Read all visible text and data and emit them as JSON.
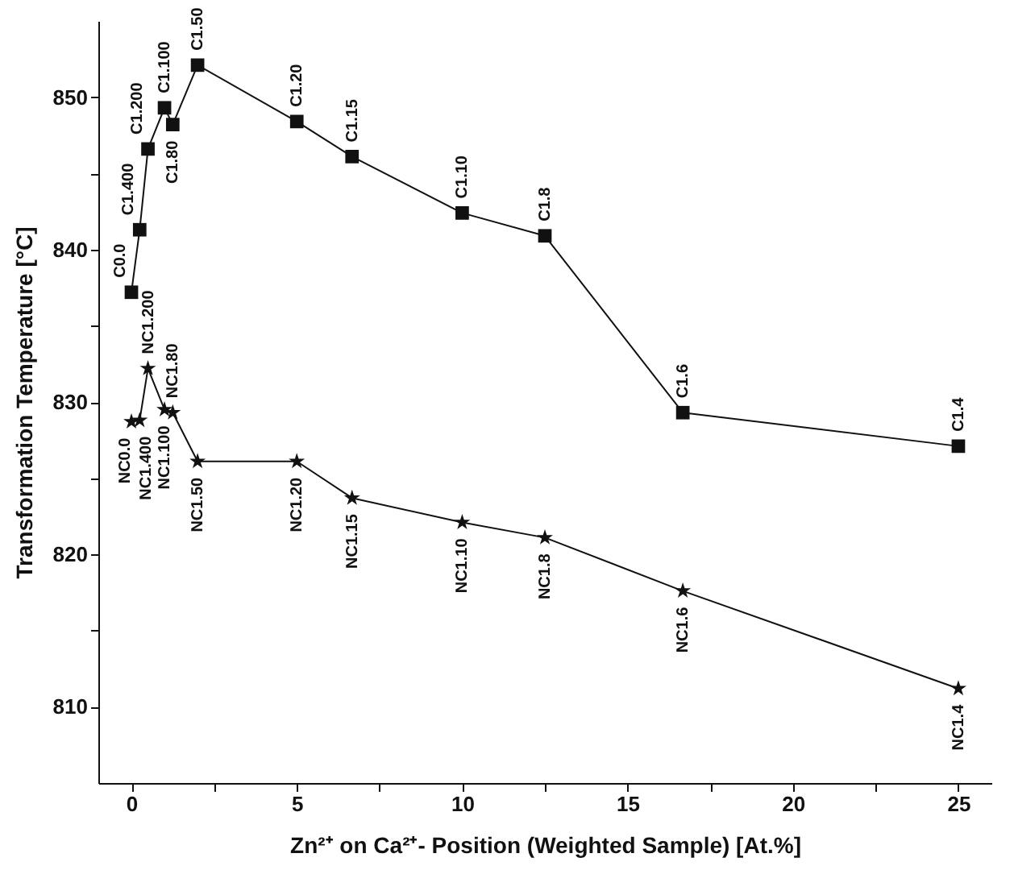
{
  "chart_data": {
    "type": "line",
    "xlabel": "Zn²⁺ on Ca²⁺- Position (Weighted Sample) [At.%]",
    "ylabel": "Transformation Temperature [°C]",
    "xlim": [
      -1,
      26
    ],
    "ylim": [
      805,
      855
    ],
    "xticks": [
      0,
      {
        "value": 2.5,
        "label": null
      },
      5,
      {
        "value": 7.5,
        "label": null
      },
      10,
      {
        "value": 12.5,
        "label": null
      },
      15,
      {
        "value": 17.5,
        "label": null
      },
      20,
      {
        "value": 22.5,
        "label": null
      },
      25
    ],
    "yticks": [
      810,
      {
        "value": 815,
        "label": null
      },
      820,
      {
        "value": 825,
        "label": null
      },
      830,
      {
        "value": 835,
        "label": null
      },
      840,
      {
        "value": 845,
        "label": null
      },
      850
    ],
    "grid": false,
    "line_style": "solid",
    "series": [
      {
        "color": "#111111",
        "marker": "square",
        "x": [
          0,
          0.25,
          0.5,
          1,
          1.25,
          2,
          5,
          6.67,
          10,
          12.5,
          16.67,
          25
        ],
        "values": [
          837.2,
          841.3,
          846.6,
          849.3,
          848.2,
          852.1,
          848.4,
          846.1,
          842.4,
          840.9,
          829.3,
          827.1
        ]
      },
      {
        "color": "#111111",
        "marker": "star",
        "x": [
          0,
          0.25,
          0.5,
          1,
          1.25,
          2,
          5,
          6.67,
          10,
          12.5,
          16.67,
          25
        ],
        "values": [
          828.7,
          828.8,
          832.2,
          829.5,
          829.3,
          826.1,
          826.1,
          823.7,
          822.1,
          821.1,
          817.6,
          811.2
        ]
      }
    ],
    "annotations": [
      {
        "text": "C0.0",
        "x": 0,
        "y": 837.2
      },
      {
        "text": "C1.400",
        "x": 0.25,
        "y": 841.3
      },
      {
        "text": "C1.200",
        "x": 0.5,
        "y": 846.6
      },
      {
        "text": "C1.100",
        "x": 1,
        "y": 849.3
      },
      {
        "text": "C1.80",
        "x": 1.25,
        "y": 848.2
      },
      {
        "text": "C1.50",
        "x": 2,
        "y": 852.1
      },
      {
        "text": "C1.20",
        "x": 5,
        "y": 848.4
      },
      {
        "text": "C1.15",
        "x": 6.67,
        "y": 846.1
      },
      {
        "text": "C1.10",
        "x": 10,
        "y": 842.4
      },
      {
        "text": "C1.8",
        "x": 12.5,
        "y": 840.9
      },
      {
        "text": "C1.6",
        "x": 16.67,
        "y": 829.3
      },
      {
        "text": "C1.4",
        "x": 25,
        "y": 827.1
      },
      {
        "text": "NC0.0",
        "x": 0,
        "y": 828.7
      },
      {
        "text": "NC1.400",
        "x": 0.25,
        "y": 828.8
      },
      {
        "text": "NC1.200",
        "x": 0.5,
        "y": 832.2
      },
      {
        "text": "NC1.100",
        "x": 1,
        "y": 829.5
      },
      {
        "text": "NC1.80",
        "x": 1.25,
        "y": 829.3
      },
      {
        "text": "NC1.50",
        "x": 2,
        "y": 826.1
      },
      {
        "text": "NC1.20",
        "x": 5,
        "y": 826.1
      },
      {
        "text": "NC1.15",
        "x": 6.67,
        "y": 823.7
      },
      {
        "text": "NC1.10",
        "x": 10,
        "y": 822.1
      },
      {
        "text": "NC1.8",
        "x": 12.5,
        "y": 821.1
      },
      {
        "text": "NC1.6",
        "x": 16.67,
        "y": 817.6
      },
      {
        "text": "NC1.4",
        "x": 25,
        "y": 811.2
      }
    ]
  }
}
